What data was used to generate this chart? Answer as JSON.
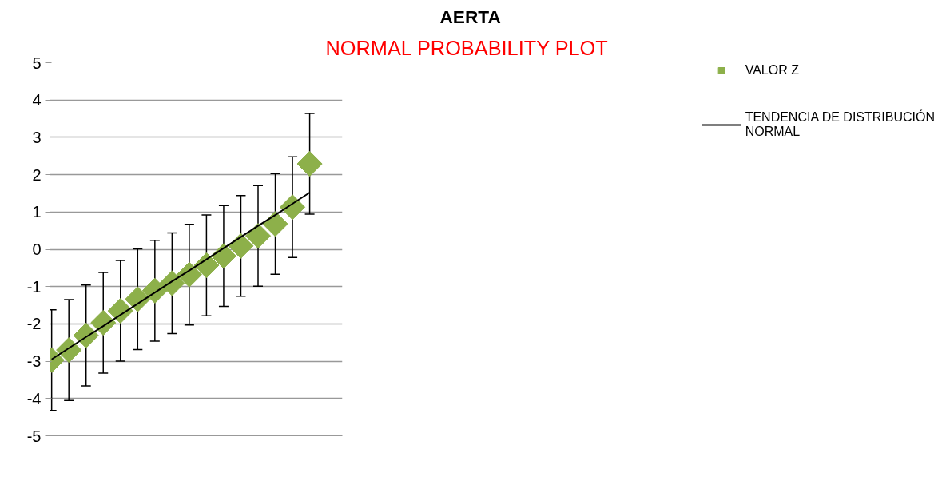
{
  "chart_data": {
    "type": "scatter",
    "title": "AERTA",
    "subtitle": "NORMAL PROBABILITY PLOT",
    "categories": [
      null,
      null,
      null,
      null,
      null,
      null,
      null,
      null,
      null,
      null,
      null,
      null,
      null,
      null,
      null,
      null
    ],
    "ylim": [
      -5,
      5
    ],
    "yticks": [
      -5,
      -4,
      -3,
      -2,
      -1,
      0,
      1,
      2,
      3,
      4,
      5
    ],
    "grid": "y",
    "legend": "right",
    "tick_labels": "y",
    "series": [
      {
        "name": "VALOR Z",
        "color": "#8db04a",
        "marker": "diamond",
        "values": [
          -2.97,
          -2.7,
          -2.31,
          -1.97,
          -1.65,
          -1.34,
          -1.11,
          -0.91,
          -0.68,
          -0.43,
          -0.18,
          0.09,
          0.36,
          0.68,
          1.13,
          2.29
        ],
        "errors": [
          1.35,
          1.35,
          1.35,
          1.35,
          1.35,
          1.35,
          1.35,
          1.35,
          1.35,
          1.35,
          1.35,
          1.35,
          1.35,
          1.35,
          1.35,
          1.35
        ]
      },
      {
        "name": "TENDENCIA DE DISTRIBUCIÓN NORMAL",
        "type": "line",
        "color": "#000000",
        "values": [
          -2.95,
          -2.65,
          -2.35,
          -2.06,
          -1.76,
          -1.46,
          -1.16,
          -0.86,
          -0.57,
          -0.27,
          0.03,
          0.33,
          0.63,
          0.92,
          1.22,
          1.52
        ]
      }
    ]
  }
}
